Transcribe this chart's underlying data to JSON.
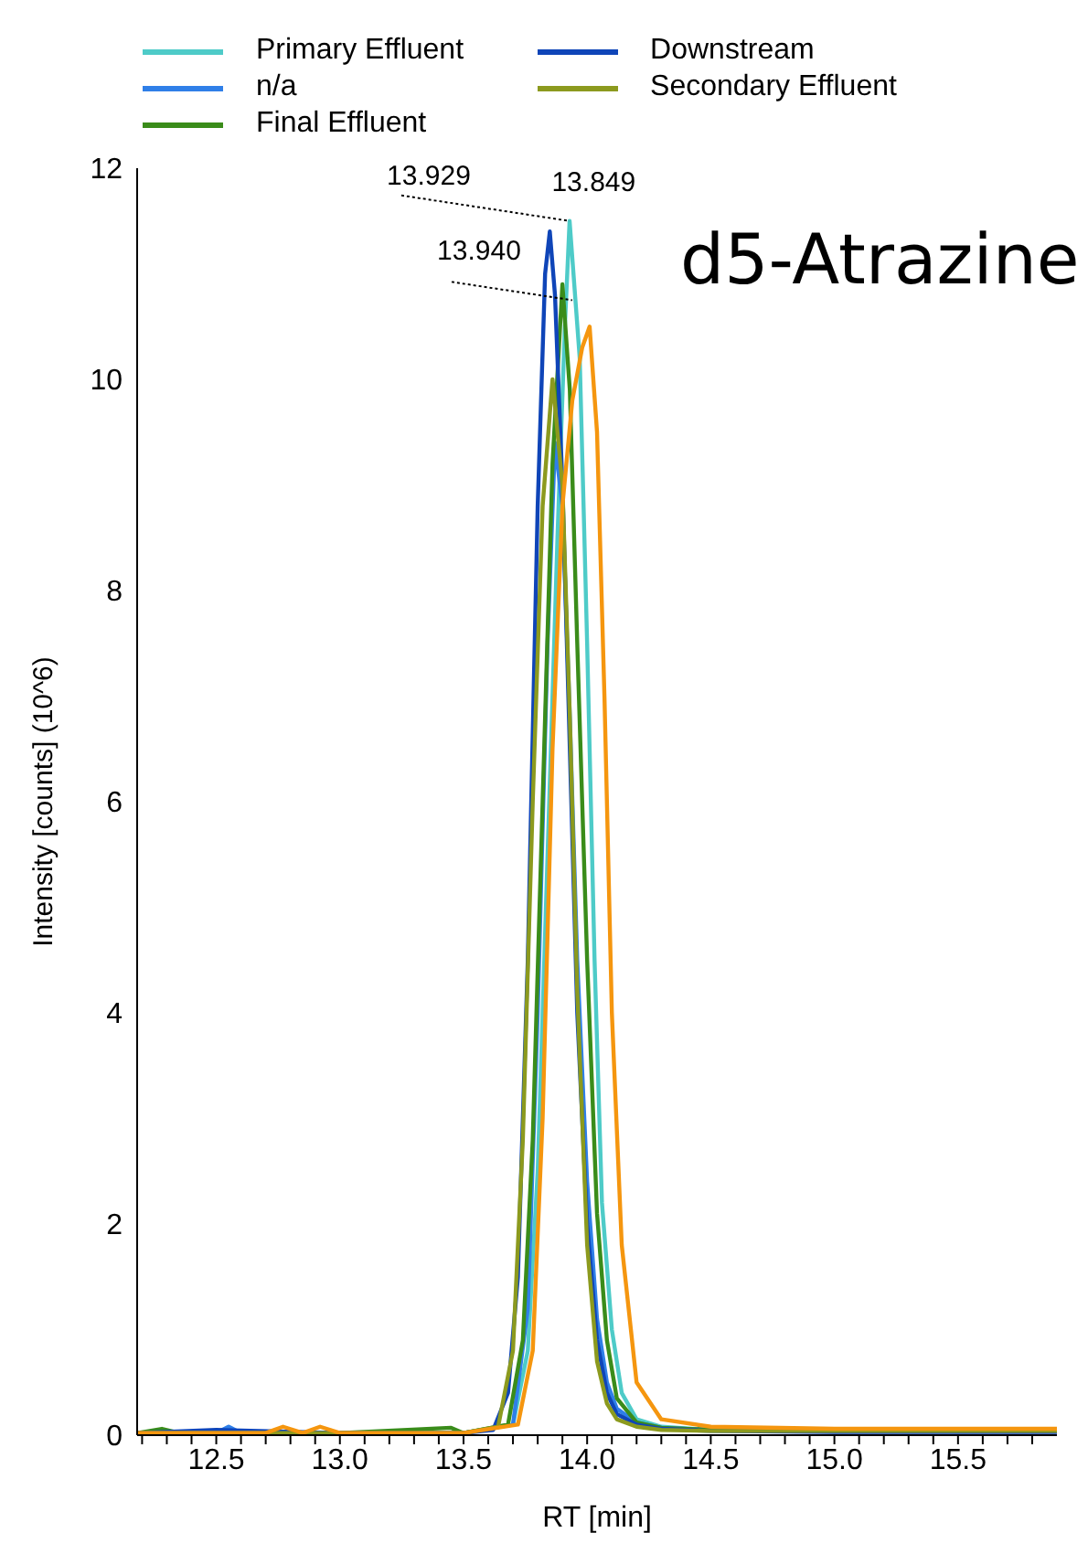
{
  "chart_data": {
    "type": "line",
    "title": "d5-Atrazine",
    "xlabel": "RT [min]",
    "ylabel": "Intensity [counts] (10^6)",
    "xlim": [
      12.18,
      15.9
    ],
    "ylim": [
      0,
      12
    ],
    "xticks": [
      {
        "value": 12.2,
        "label": null
      },
      {
        "value": 12.3,
        "label": null
      },
      {
        "value": 12.4,
        "label": null
      },
      {
        "value": 12.5,
        "label": "12.5"
      },
      {
        "value": 12.6,
        "label": null
      },
      {
        "value": 12.7,
        "label": null
      },
      {
        "value": 12.8,
        "label": null
      },
      {
        "value": 12.9,
        "label": null
      },
      {
        "value": 13,
        "label": "13.0"
      },
      {
        "value": 13.1,
        "label": null
      },
      {
        "value": 13.2,
        "label": null
      },
      {
        "value": 13.3,
        "label": null
      },
      {
        "value": 13.4,
        "label": null
      },
      {
        "value": 13.5,
        "label": "13.5"
      },
      {
        "value": 13.6,
        "label": null
      },
      {
        "value": 13.7,
        "label": null
      },
      {
        "value": 13.8,
        "label": null
      },
      {
        "value": 13.9,
        "label": null
      },
      {
        "value": 14,
        "label": "14.0"
      },
      {
        "value": 14.1,
        "label": null
      },
      {
        "value": 14.2,
        "label": null
      },
      {
        "value": 14.3,
        "label": null
      },
      {
        "value": 14.4,
        "label": null
      },
      {
        "value": 14.5,
        "label": "14.5"
      },
      {
        "value": 14.6,
        "label": null
      },
      {
        "value": 14.7,
        "label": null
      },
      {
        "value": 14.8,
        "label": null
      },
      {
        "value": 14.9,
        "label": null
      },
      {
        "value": 15,
        "label": "15.0"
      },
      {
        "value": 15.1,
        "label": null
      },
      {
        "value": 15.2,
        "label": null
      },
      {
        "value": 15.3,
        "label": null
      },
      {
        "value": 15.4,
        "label": null
      },
      {
        "value": 15.5,
        "label": "15.5"
      },
      {
        "value": 15.6,
        "label": null
      },
      {
        "value": 15.7,
        "label": null
      },
      {
        "value": 15.8,
        "label": null
      }
    ],
    "yticks": [
      0,
      2,
      4,
      6,
      8,
      10,
      12
    ],
    "grid": false,
    "legend": "top",
    "marker": "none",
    "line_style": "solid",
    "annotations": [
      {
        "text": "13.929",
        "x": 13.929,
        "y": 11.5
      },
      {
        "text": "13.849",
        "x": 13.849,
        "y": 11.4
      },
      {
        "text": "13.940",
        "x": 13.94,
        "y": 10.75
      }
    ],
    "series": [
      {
        "name": "Primary Effluent",
        "color": "#4ecbc8",
        "x": [
          13.5,
          13.7,
          13.76,
          13.8,
          13.84,
          13.88,
          13.91,
          13.929,
          13.97,
          14.0,
          14.03,
          14.06,
          14.1,
          14.14,
          14.2,
          14.3,
          14.5,
          15.0
        ],
        "values": [
          0.02,
          0.1,
          0.8,
          2.5,
          5.5,
          8.5,
          10.5,
          11.5,
          10.2,
          7.5,
          4.5,
          2.2,
          1.0,
          0.4,
          0.15,
          0.08,
          0.05,
          0.04
        ]
      },
      {
        "name": "n/a",
        "color": "#2f7fe8",
        "x": [
          12.18,
          12.5,
          12.55,
          12.6,
          13.0,
          13.5,
          13.7,
          13.76,
          13.8,
          13.84,
          13.87,
          13.9,
          13.93,
          13.96,
          14.0,
          14.04,
          14.08,
          14.12,
          14.2,
          14.3,
          14.5,
          15.0,
          15.5,
          15.9
        ],
        "values": [
          0.02,
          0.02,
          0.08,
          0.02,
          0.02,
          0.02,
          0.1,
          1.2,
          4.0,
          7.5,
          9.4,
          8.8,
          6.8,
          4.5,
          2.4,
          1.1,
          0.5,
          0.25,
          0.12,
          0.07,
          0.05,
          0.05,
          0.05,
          0.05
        ]
      },
      {
        "name": "Final Effluent",
        "color": "#3a8c1a",
        "x": [
          12.18,
          12.28,
          12.35,
          13.0,
          13.45,
          13.5,
          13.68,
          13.74,
          13.78,
          13.82,
          13.86,
          13.9,
          13.93,
          13.96,
          14.0,
          14.04,
          14.08,
          14.12,
          14.2,
          14.3,
          14.5,
          15.0
        ],
        "values": [
          0.02,
          0.06,
          0.02,
          0.02,
          0.07,
          0.02,
          0.1,
          0.9,
          2.8,
          6.0,
          9.2,
          10.9,
          9.9,
          7.5,
          4.5,
          2.1,
          0.9,
          0.35,
          0.12,
          0.07,
          0.05,
          0.04
        ]
      },
      {
        "name": "Downstream",
        "color": "#0f45b8",
        "x": [
          12.18,
          12.5,
          13.0,
          13.5,
          13.62,
          13.68,
          13.72,
          13.76,
          13.8,
          13.83,
          13.849,
          13.87,
          13.9,
          13.93,
          13.96,
          14.0,
          14.04,
          14.08,
          14.12,
          14.2,
          14.3,
          14.5,
          15.0,
          15.5,
          15.9
        ],
        "values": [
          0.02,
          0.05,
          0.02,
          0.02,
          0.05,
          0.4,
          1.5,
          4.5,
          8.8,
          11.0,
          11.4,
          10.8,
          9.0,
          6.5,
          4.0,
          2.0,
          0.9,
          0.4,
          0.2,
          0.1,
          0.06,
          0.04,
          0.03,
          0.03,
          0.03
        ]
      },
      {
        "name": "Secondary Effluent",
        "color": "#8c9a1e",
        "x": [
          12.18,
          12.5,
          13.0,
          13.5,
          13.64,
          13.7,
          13.74,
          13.78,
          13.82,
          13.86,
          13.9,
          13.93,
          13.96,
          14.0,
          14.04,
          14.08,
          14.12,
          14.2,
          14.3,
          14.5,
          15.0,
          15.5,
          15.9
        ],
        "values": [
          0.02,
          0.02,
          0.02,
          0.02,
          0.08,
          0.8,
          2.8,
          6.0,
          8.8,
          10.0,
          9.0,
          6.8,
          4.2,
          1.8,
          0.7,
          0.3,
          0.15,
          0.08,
          0.05,
          0.04,
          0.04,
          0.04,
          0.04
        ]
      },
      {
        "color": "#f5960f",
        "x": [
          12.18,
          12.7,
          12.77,
          12.85,
          12.92,
          13.0,
          13.5,
          13.72,
          13.78,
          13.82,
          13.86,
          13.9,
          13.94,
          13.98,
          14.01,
          14.04,
          14.07,
          14.1,
          14.14,
          14.2,
          14.3,
          14.5,
          15.0,
          15.5,
          15.9
        ],
        "values": [
          0.02,
          0.02,
          0.08,
          0.02,
          0.08,
          0.02,
          0.02,
          0.1,
          0.8,
          3.0,
          6.5,
          8.8,
          9.8,
          10.3,
          10.5,
          9.5,
          7.0,
          4.0,
          1.8,
          0.5,
          0.15,
          0.08,
          0.06,
          0.06,
          0.06
        ]
      }
    ]
  }
}
